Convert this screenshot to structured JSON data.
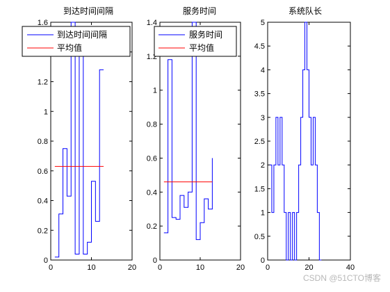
{
  "chart_data": [
    {
      "type": "line",
      "title": "到达时间间隔",
      "xlim": [
        0,
        20
      ],
      "ylim": [
        0,
        1.6
      ],
      "xticks": [
        0,
        10,
        20
      ],
      "yticks": [
        0,
        0.2,
        0.4,
        0.6,
        0.8,
        1,
        1.2,
        1.4,
        1.6
      ],
      "legend_position": "top",
      "series": [
        {
          "name": "到达时间间隔",
          "style": "stairs",
          "color": "#0000ff",
          "x": [
            1,
            2,
            3,
            4,
            5,
            6,
            7,
            8,
            9,
            10,
            11,
            12,
            13
          ],
          "values": [
            0.02,
            0.31,
            0.75,
            0.43,
            1.6,
            0.04,
            1.4,
            0.04,
            0.12,
            0.53,
            0.26,
            1.28,
            1.28
          ]
        },
        {
          "name": "平均值",
          "style": "line",
          "color": "#ff0000",
          "x": [
            1,
            13
          ],
          "values": [
            0.63,
            0.63
          ]
        }
      ]
    },
    {
      "type": "line",
      "title": "服务时间",
      "xlim": [
        0,
        20
      ],
      "ylim": [
        0,
        1.4
      ],
      "xticks": [
        0,
        10,
        20
      ],
      "yticks": [
        0,
        0.2,
        0.4,
        0.6,
        0.8,
        1,
        1.2,
        1.4
      ],
      "legend_position": "top",
      "series": [
        {
          "name": "服务时间",
          "style": "stairs",
          "color": "#0000ff",
          "x": [
            1,
            2,
            3,
            4,
            5,
            6,
            7,
            8,
            9,
            10,
            11,
            12,
            13
          ],
          "values": [
            0.16,
            1.18,
            0.25,
            0.24,
            0.38,
            0.31,
            0.4,
            1.4,
            0.12,
            0.22,
            0.36,
            0.3,
            0.6
          ]
        },
        {
          "name": "平均值",
          "style": "line",
          "color": "#ff0000",
          "x": [
            1,
            13
          ],
          "values": [
            0.46,
            0.46
          ]
        }
      ]
    },
    {
      "type": "line",
      "title": "系统队长",
      "xlim": [
        0,
        40
      ],
      "ylim": [
        0,
        5
      ],
      "xticks": [
        0,
        20,
        40
      ],
      "yticks": [
        0,
        0.5,
        1,
        1.5,
        2,
        2.5,
        3,
        3.5,
        4,
        4.5,
        5
      ],
      "series": [
        {
          "style": "stairs",
          "color": "#0000ff",
          "x": [
            1,
            2,
            3,
            4,
            5,
            6,
            7,
            8,
            9,
            10,
            11,
            12,
            13,
            14,
            15,
            16,
            17,
            18,
            19,
            20,
            21,
            22,
            23,
            24,
            25,
            26
          ],
          "values": [
            2,
            1,
            2,
            3,
            2,
            3,
            2,
            1,
            0,
            1,
            0,
            1,
            0,
            1,
            2,
            3,
            4,
            5,
            4,
            3,
            2,
            3,
            2,
            1,
            0,
            0
          ]
        }
      ]
    }
  ],
  "watermark": "CSDN @51CTO博客"
}
